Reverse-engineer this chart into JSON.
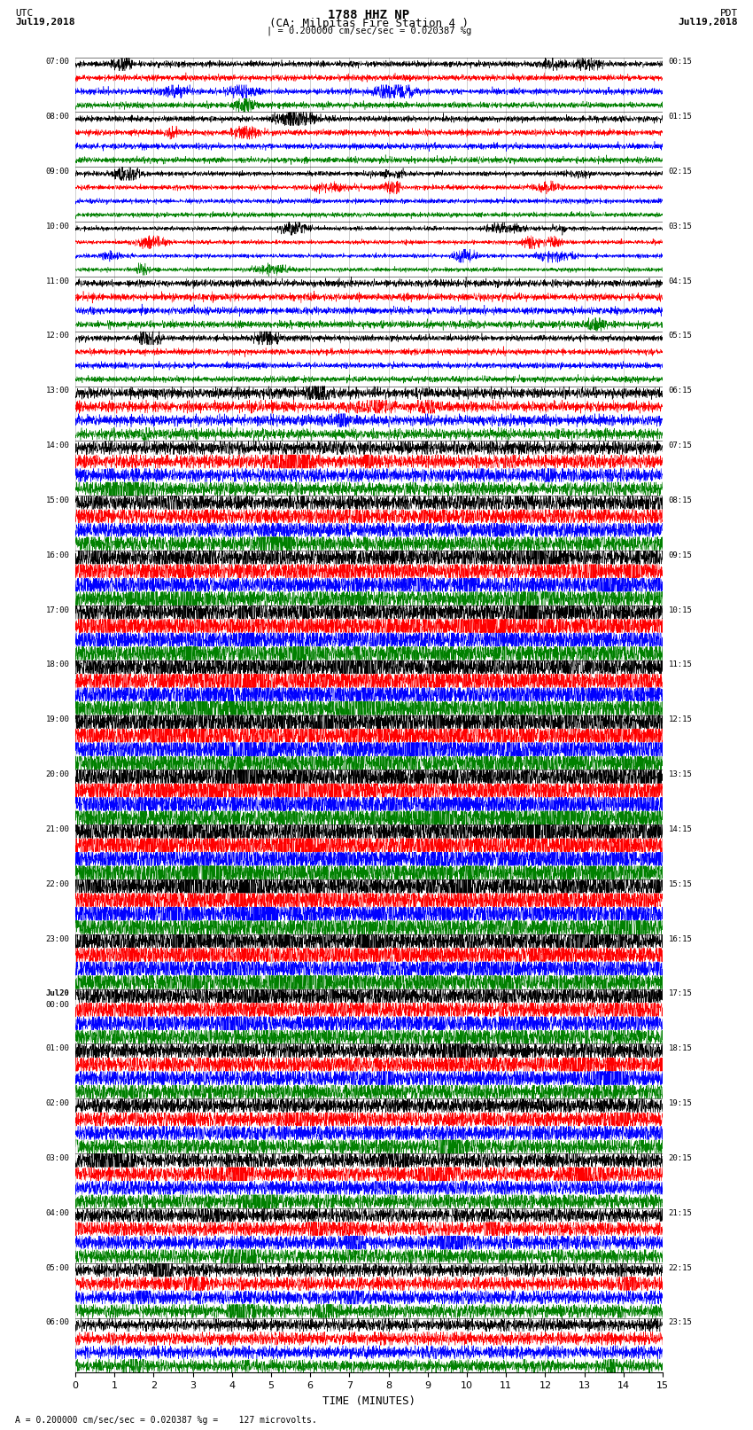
{
  "title_line1": "1788 HHZ NP",
  "title_line2": "(CA: Milpitas Fire Station 4 )",
  "title_scale": "| = 0.200000 cm/sec/sec = 0.020387 %g",
  "left_label_top": "UTC",
  "left_label_date": "Jul19,2018",
  "right_label_top": "PDT",
  "right_label_date": "Jul19,2018",
  "xlabel": "TIME (MINUTES)",
  "bottom_note": "= 0.200000 cm/sec/sec = 0.020387 %g =    127 microvolts.",
  "xlim": [
    0,
    15
  ],
  "xticks": [
    0,
    1,
    2,
    3,
    4,
    5,
    6,
    7,
    8,
    9,
    10,
    11,
    12,
    13,
    14,
    15
  ],
  "colors": [
    "black",
    "red",
    "blue",
    "green"
  ],
  "figure_width": 8.5,
  "figure_height": 16.13,
  "dpi": 100,
  "left_times": [
    "07:00",
    "08:00",
    "09:00",
    "10:00",
    "11:00",
    "12:00",
    "13:00",
    "14:00",
    "15:00",
    "16:00",
    "17:00",
    "18:00",
    "19:00",
    "20:00",
    "21:00",
    "22:00",
    "23:00",
    "Jul20\n00:00",
    "01:00",
    "02:00",
    "03:00",
    "04:00",
    "05:00",
    "06:00"
  ],
  "right_times": [
    "00:15",
    "01:15",
    "02:15",
    "03:15",
    "04:15",
    "05:15",
    "06:15",
    "07:15",
    "08:15",
    "09:15",
    "10:15",
    "11:15",
    "12:15",
    "13:15",
    "14:15",
    "15:15",
    "16:15",
    "17:15",
    "18:15",
    "19:15",
    "20:15",
    "21:15",
    "22:15",
    "23:15"
  ],
  "bg_color": "white",
  "noise_seed": 12345,
  "amplitudes": [
    0.1,
    0.1,
    0.08,
    0.07,
    0.12,
    0.1,
    0.18,
    0.25,
    0.32,
    0.38,
    0.42,
    0.45,
    0.48,
    0.48,
    0.48,
    0.45,
    0.42,
    0.38,
    0.35,
    0.32,
    0.3,
    0.28,
    0.25,
    0.22
  ]
}
